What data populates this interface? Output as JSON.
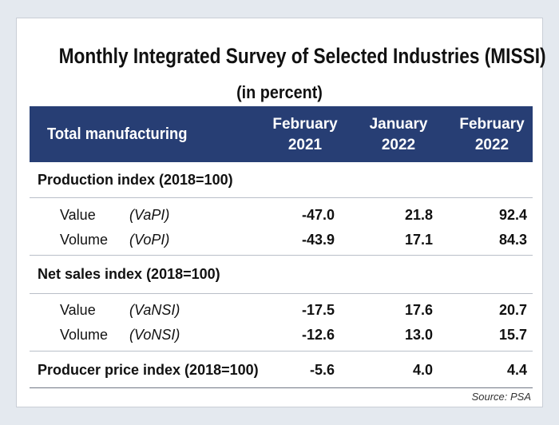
{
  "title": "Monthly Integrated Survey of Selected Industries (MISSI)",
  "subtitle": "(in percent)",
  "header": {
    "label": "Total manufacturing",
    "columns": [
      {
        "line1": "February",
        "line2": "2021"
      },
      {
        "line1": "January",
        "line2": "2022"
      },
      {
        "line1": "February",
        "line2": "2022"
      }
    ]
  },
  "sections": {
    "production": {
      "heading": "Production index (2018=100)",
      "rows": [
        {
          "name": "Value",
          "abbr": "(VaPI)",
          "values": [
            "-47.0",
            "21.8",
            "92.4"
          ]
        },
        {
          "name": "Volume",
          "abbr": "(VoPI)",
          "values": [
            "-43.9",
            "17.1",
            "84.3"
          ]
        }
      ]
    },
    "net_sales": {
      "heading": "Net sales index (2018=100)",
      "rows": [
        {
          "name": "Value",
          "abbr": "(VaNSI)",
          "values": [
            "-17.5",
            "17.6",
            "20.7"
          ]
        },
        {
          "name": "Volume",
          "abbr": "(VoNSI)",
          "values": [
            "-12.6",
            "13.0",
            "15.7"
          ]
        }
      ]
    },
    "ppi": {
      "heading": "Producer price index (2018=100)",
      "values": [
        "-5.6",
        "4.0",
        "4.4"
      ]
    }
  },
  "source": "Source: PSA",
  "colors": {
    "header_bg": "#273e74",
    "page_bg": "#e4e9ef"
  }
}
